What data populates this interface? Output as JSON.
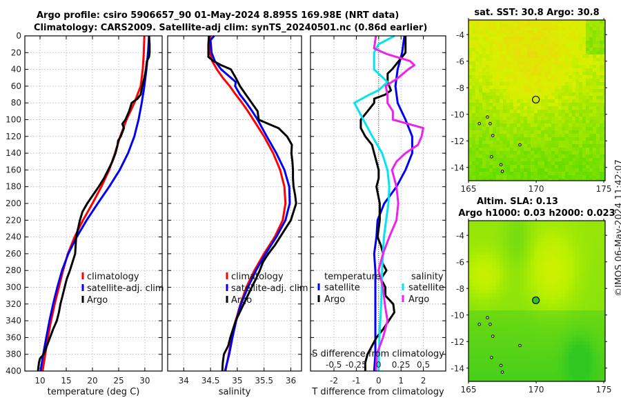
{
  "title_line1": "Argo profile: csiro 5906657_90 01-May-2024 8.895S 169.98E (NRT data)",
  "title_line2": "Climatology: CARS2009. Satellite-adj clim: synTS_20240501.nc (0.86d earlier)",
  "timestamp_label": "©IMOS 06-May-2024 11:42:07",
  "colors": {
    "climatology": "#ff0000",
    "satellite": "#0000ee",
    "argo": "#000000",
    "sal_satellite": "#00e5ee",
    "sal_argo": "#ee22ee",
    "grid": "#c8c8e0"
  },
  "chart_data": [
    {
      "type": "line",
      "id": "temperature",
      "title": "",
      "xlabel": "temperature (deg C)",
      "ylabel": "",
      "xlim": [
        7.1,
        33.3
      ],
      "ylim": [
        400,
        0
      ],
      "xticks": [
        10,
        15,
        20,
        25,
        30
      ],
      "yticks": [
        0,
        20,
        40,
        60,
        80,
        100,
        120,
        140,
        160,
        180,
        200,
        220,
        240,
        260,
        280,
        300,
        320,
        340,
        360,
        380,
        400
      ],
      "grid": true,
      "legend": {
        "placement": "lower-right",
        "entries": [
          "climatology",
          "satellite-adj. clim",
          "Argo"
        ]
      },
      "series": [
        {
          "name": "climatology",
          "color_key": "climatology",
          "depth": [
            0,
            20,
            40,
            60,
            80,
            100,
            120,
            140,
            160,
            180,
            200,
            220,
            240,
            260,
            280,
            300,
            320,
            340,
            360,
            380,
            400
          ],
          "values": [
            29.9,
            29.8,
            29.6,
            29.2,
            28.0,
            26.5,
            25.3,
            24.3,
            23.2,
            21.7,
            20.0,
            18.2,
            16.6,
            15.3,
            14.4,
            13.6,
            12.8,
            12.1,
            11.5,
            11.0,
            10.5
          ]
        },
        {
          "name": "satellite-adj. clim",
          "color_key": "satellite",
          "depth": [
            0,
            20,
            40,
            60,
            80,
            100,
            120,
            140,
            160,
            180,
            200,
            220,
            240,
            260,
            280,
            300,
            320,
            340,
            360,
            380,
            400
          ],
          "values": [
            30.8,
            30.6,
            30.3,
            29.9,
            29.4,
            28.8,
            28.0,
            26.8,
            25.2,
            23.2,
            21.0,
            18.9,
            17.0,
            15.4,
            14.2,
            13.3,
            12.5,
            11.8,
            11.2,
            10.6,
            10.1
          ]
        },
        {
          "name": "Argo",
          "color_key": "argo",
          "depth": [
            0,
            10,
            20,
            25,
            30,
            40,
            50,
            60,
            70,
            75,
            80,
            90,
            100,
            105,
            110,
            120,
            125,
            130,
            140,
            150,
            160,
            170,
            180,
            190,
            200,
            210,
            220,
            240,
            260,
            270,
            280,
            290,
            300,
            310,
            320,
            330,
            340,
            350,
            360,
            370,
            380,
            385,
            390,
            400
          ],
          "values": [
            30.8,
            30.9,
            30.9,
            30.8,
            30.4,
            30.2,
            29.9,
            29.5,
            29.2,
            28.6,
            27.5,
            27.0,
            26.3,
            25.7,
            26.0,
            25.4,
            24.9,
            24.8,
            24.4,
            23.8,
            23.0,
            22.2,
            21.2,
            20.1,
            19.0,
            18.1,
            17.6,
            16.9,
            16.7,
            16.2,
            15.7,
            15.1,
            14.7,
            14.3,
            13.9,
            13.6,
            13.2,
            12.5,
            11.9,
            11.3,
            10.7,
            10.0,
            9.8,
            9.6
          ]
        }
      ]
    },
    {
      "type": "line",
      "id": "salinity",
      "xlabel": "salinity",
      "ylabel": "",
      "xlim": [
        33.7,
        36.2
      ],
      "ylim": [
        400,
        0
      ],
      "xticks": [
        34,
        34.5,
        35,
        35.5,
        36
      ],
      "xtick_labels": [
        "34",
        "34.5",
        "35",
        "35.5",
        "36"
      ],
      "grid": true,
      "legend": {
        "placement": "lower-right",
        "entries": [
          "climatology",
          "satellite-adj. clim",
          "Argo"
        ]
      },
      "series": [
        {
          "name": "climatology",
          "color_key": "climatology",
          "depth": [
            0,
            10,
            20,
            30,
            40,
            50,
            60,
            70,
            80,
            90,
            100,
            120,
            140,
            160,
            180,
            200,
            220,
            240,
            260,
            280,
            300,
            320,
            340,
            360,
            380,
            400
          ],
          "values": [
            34.5,
            34.48,
            34.49,
            34.53,
            34.62,
            34.73,
            34.86,
            34.97,
            35.09,
            35.2,
            35.3,
            35.5,
            35.67,
            35.8,
            35.88,
            35.9,
            35.85,
            35.7,
            35.5,
            35.32,
            35.17,
            35.06,
            34.97,
            34.9,
            34.84,
            34.78
          ]
        },
        {
          "name": "satellite-adj. clim",
          "color_key": "satellite",
          "depth": [
            0,
            5,
            20,
            30,
            40,
            50,
            55,
            60,
            70,
            80,
            90,
            100,
            120,
            140,
            160,
            180,
            200,
            220,
            240,
            260,
            280,
            300,
            320,
            340,
            360,
            380,
            400
          ],
          "values": [
            34.57,
            34.5,
            34.52,
            34.58,
            34.7,
            34.88,
            34.97,
            34.96,
            35.05,
            35.17,
            35.28,
            35.38,
            35.55,
            35.73,
            35.88,
            35.97,
            35.98,
            35.9,
            35.73,
            35.53,
            35.35,
            35.2,
            35.07,
            34.98,
            34.91,
            34.85,
            34.77
          ]
        },
        {
          "name": "Argo",
          "color_key": "argo",
          "depth": [
            0,
            10,
            20,
            25,
            30,
            35,
            40,
            50,
            60,
            70,
            80,
            90,
            100,
            105,
            110,
            120,
            130,
            140,
            150,
            160,
            170,
            180,
            190,
            200,
            210,
            220,
            230,
            240,
            250,
            260,
            270,
            280,
            290,
            300,
            320,
            340,
            360,
            370,
            380,
            390,
            400
          ],
          "values": [
            34.47,
            34.46,
            34.46,
            34.46,
            34.55,
            34.7,
            34.88,
            34.97,
            35.05,
            35.16,
            35.27,
            35.38,
            35.4,
            35.58,
            35.77,
            35.93,
            36.02,
            36.01,
            36.03,
            36.04,
            36.04,
            36.05,
            36.08,
            36.1,
            36.05,
            36.0,
            35.9,
            35.8,
            35.7,
            35.58,
            35.48,
            35.42,
            35.35,
            35.27,
            35.12,
            34.97,
            34.87,
            34.83,
            34.75,
            34.73,
            34.72
          ]
        }
      ]
    },
    {
      "type": "line",
      "id": "difference",
      "xlabel": "T difference from climatology",
      "xlim": [
        -3.05,
        3.0
      ],
      "xticks": [
        -2,
        -1,
        0,
        1,
        2
      ],
      "secondary_xlabel": "S difference from climatology",
      "secondary_xticks": [
        -0.5,
        -0.25,
        0,
        0.25,
        0.5
      ],
      "secondary_xtick_labels": [
        "-0.5",
        "-0.25",
        "0",
        "0.25",
        "0.5"
      ],
      "secondary_xlim": [
        -0.76,
        0.75
      ],
      "ylim": [
        400,
        0
      ],
      "grid": true,
      "zero_line": "dotted",
      "legend": {
        "placement": "lower",
        "groups": [
          {
            "title": "temperature",
            "entries": [
              "satellite",
              "Argo"
            ]
          },
          {
            "title": "salinity",
            "entries": [
              "satellite",
              "Argo"
            ]
          }
        ]
      },
      "series": [
        {
          "name": "temperature satellite",
          "axis": "T",
          "color_key": "satellite",
          "depth": [
            0,
            20,
            40,
            60,
            80,
            100,
            120,
            140,
            160,
            180,
            200,
            220,
            240,
            260,
            280,
            300,
            320,
            340,
            360,
            380,
            400
          ],
          "values": [
            1.15,
            1.05,
            0.85,
            0.75,
            0.85,
            1.2,
            1.5,
            1.5,
            1.2,
            0.8,
            0.25,
            -0.05,
            -0.1,
            -0.2,
            -0.15,
            -0.15,
            -0.15,
            -0.15,
            -0.15,
            -0.15,
            -0.2
          ]
        },
        {
          "name": "temperature Argo",
          "axis": "T",
          "color_key": "argo",
          "depth": [
            0,
            10,
            20,
            30,
            40,
            45,
            55,
            65,
            70,
            75,
            80,
            90,
            100,
            110,
            120,
            130,
            140,
            150,
            160,
            170,
            180,
            200,
            220,
            240,
            250,
            260,
            270,
            280,
            290,
            300,
            310,
            320,
            330,
            340,
            350,
            360,
            370,
            380,
            390,
            400
          ],
          "values": [
            1.2,
            1.2,
            1.2,
            0.9,
            0.6,
            0.4,
            0.4,
            0.55,
            0.3,
            -0.2,
            -0.2,
            -0.5,
            -0.8,
            -0.8,
            -0.6,
            -0.3,
            -0.2,
            -0.1,
            0.0,
            0.0,
            -0.1,
            0.05,
            0.05,
            -0.05,
            0.1,
            0.2,
            0.15,
            0.35,
            0.1,
            0.3,
            0.3,
            0.65,
            0.7,
            0.45,
            0.2,
            -0.1,
            -0.3,
            -0.5,
            -0.6,
            -0.6
          ]
        },
        {
          "name": "salinity satellite",
          "axis": "S",
          "color_key": "sal_satellite",
          "depth": [
            0,
            10,
            20,
            40,
            50,
            55,
            65,
            70,
            80,
            90,
            100,
            120,
            140,
            160,
            180,
            200,
            240,
            280,
            320,
            360,
            400
          ],
          "values": [
            0.18,
            0.0,
            -0.05,
            -0.05,
            0.05,
            0.1,
            0.0,
            -0.1,
            -0.27,
            -0.22,
            -0.17,
            -0.07,
            0.04,
            0.1,
            0.12,
            0.11,
            0.06,
            0.04,
            0.03,
            0.01,
            0.0
          ]
        },
        {
          "name": "salinity Argo",
          "axis": "S",
          "color_key": "sal_argo",
          "depth": [
            0,
            15,
            22,
            30,
            35,
            40,
            50,
            60,
            70,
            80,
            90,
            100,
            110,
            120,
            130,
            140,
            150,
            160,
            180,
            200,
            220,
            240,
            260,
            280,
            300,
            320,
            340,
            360,
            380,
            400
          ],
          "values": [
            -0.03,
            -0.05,
            0.1,
            0.35,
            0.4,
            0.33,
            0.22,
            0.08,
            0.1,
            0.1,
            0.16,
            0.16,
            0.5,
            0.48,
            0.44,
            0.3,
            0.2,
            0.15,
            0.2,
            0.22,
            0.2,
            0.12,
            0.05,
            0.0,
            0.05,
            0.07,
            0.1,
            0.05,
            -0.02,
            -0.03
          ]
        }
      ]
    },
    {
      "type": "heatmap",
      "id": "sst-map",
      "title": "sat. SST: 30.8 Argo: 30.8",
      "xlim": [
        165,
        175.1
      ],
      "ylim": [
        -15,
        -2.9
      ],
      "xticks": [
        165,
        170,
        175
      ],
      "yticks": [
        -4,
        -6,
        -8,
        -10,
        -12,
        -14
      ],
      "marker": {
        "lon": 169.98,
        "lat": -8.895,
        "style": "open-circle"
      }
    },
    {
      "type": "heatmap",
      "id": "sla-map",
      "title": "Altim. SLA: 0.13",
      "subtitle": "Argo h1000: 0.03 h2000: 0.023",
      "xlim": [
        165,
        175.1
      ],
      "ylim": [
        -15,
        -2.9
      ],
      "xticks": [
        165,
        170,
        175
      ],
      "yticks": [
        -4,
        -6,
        -8,
        -10,
        -12,
        -14
      ],
      "marker": {
        "lon": 169.98,
        "lat": -8.895,
        "style": "filled-circle"
      }
    }
  ]
}
